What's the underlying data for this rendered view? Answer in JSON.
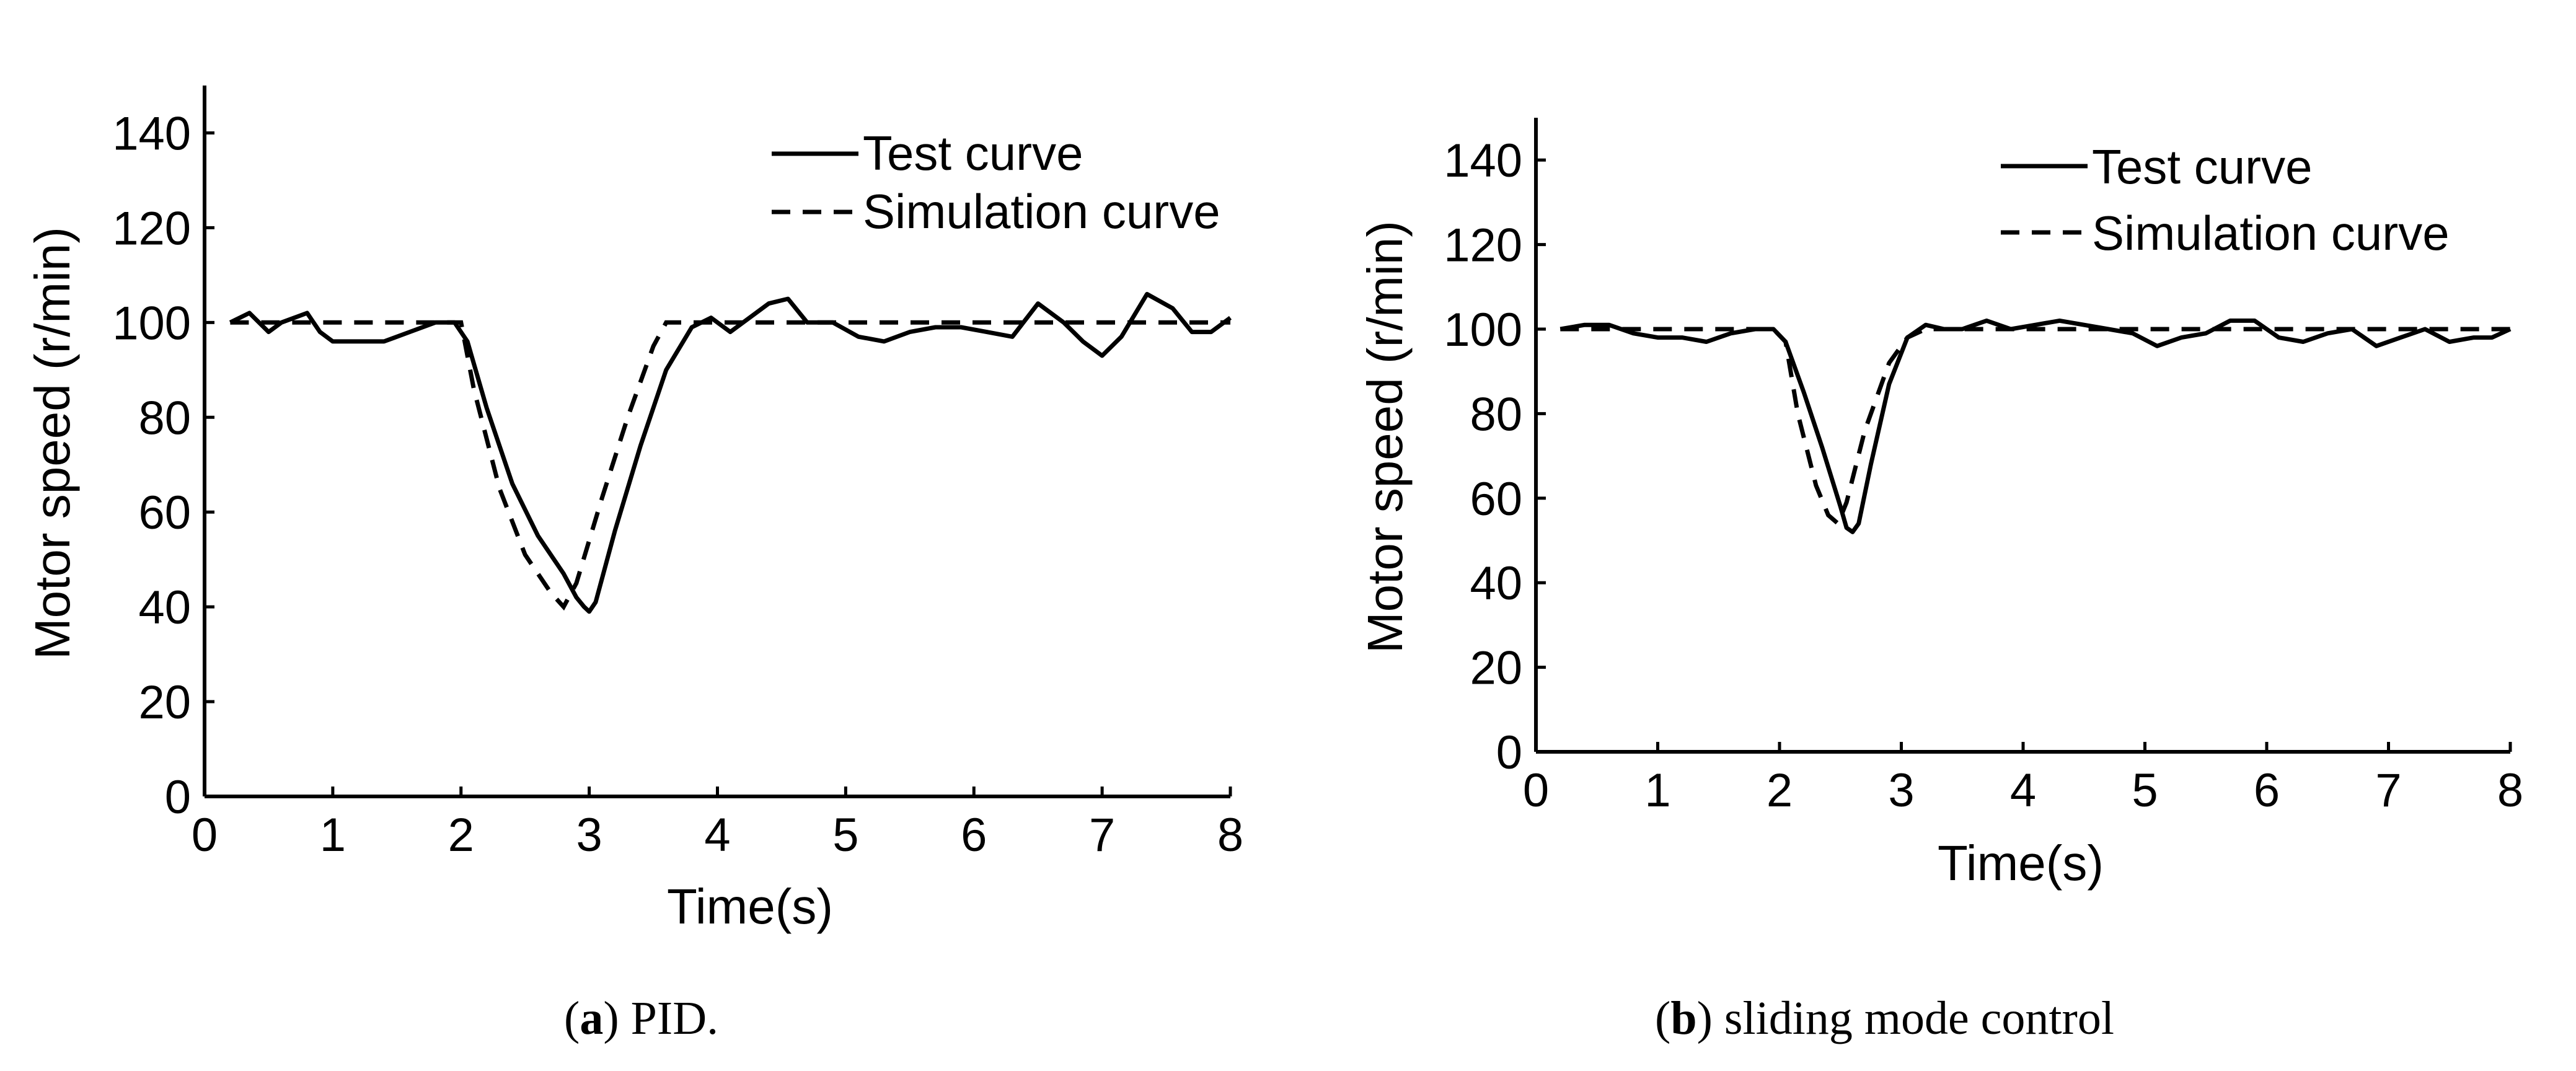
{
  "chart_data": [
    {
      "type": "line",
      "id": "a",
      "caption_letter": "a",
      "caption_text": "PID.",
      "xlabel": "Time(s)",
      "ylabel": "Motor speed (r/min)",
      "xlim": [
        0,
        8
      ],
      "ylim": [
        0,
        150
      ],
      "xticks": [
        0,
        1,
        2,
        3,
        4,
        5,
        6,
        7,
        8
      ],
      "yticks": [
        0,
        20,
        40,
        60,
        80,
        100,
        120,
        140
      ],
      "legend": {
        "position": "top-right"
      },
      "series": [
        {
          "name": "Test curve",
          "style": "solid",
          "x": [
            0.2,
            0.35,
            0.5,
            0.6,
            0.7,
            0.8,
            0.9,
            1.0,
            1.2,
            1.4,
            1.6,
            1.8,
            1.95,
            2.05,
            2.2,
            2.4,
            2.6,
            2.8,
            2.9,
            2.96,
            3.0,
            3.05,
            3.2,
            3.4,
            3.6,
            3.8,
            3.95,
            4.1,
            4.25,
            4.4,
            4.55,
            4.7,
            4.9,
            5.1,
            5.3,
            5.5,
            5.7,
            5.9,
            6.1,
            6.3,
            6.5,
            6.7,
            6.85,
            7.0,
            7.15,
            7.35,
            7.55,
            7.7,
            7.85,
            8.0
          ],
          "y": [
            100,
            102,
            98,
            100,
            101,
            102,
            98,
            96,
            96,
            96,
            98,
            100,
            100,
            96,
            82,
            66,
            55,
            47,
            42,
            40,
            39,
            41,
            56,
            74,
            90,
            99,
            101,
            98,
            101,
            104,
            105,
            100,
            100,
            97,
            96,
            98,
            99,
            99,
            98,
            97,
            104,
            100,
            96,
            93,
            97,
            106,
            103,
            98,
            98,
            101
          ]
        },
        {
          "name": "Simulation curve",
          "style": "dashed",
          "x": [
            0.2,
            1.0,
            1.9,
            2.0,
            2.1,
            2.3,
            2.5,
            2.7,
            2.8,
            2.9,
            3.1,
            3.3,
            3.5,
            3.6,
            3.65,
            4.0,
            5.0,
            6.0,
            7.0,
            8.0
          ],
          "y": [
            100,
            100,
            100,
            100,
            86,
            65,
            51,
            43,
            40,
            45,
            63,
            80,
            95,
            100,
            100,
            100,
            100,
            100,
            100,
            100
          ]
        }
      ]
    },
    {
      "type": "line",
      "id": "b",
      "caption_letter": "b",
      "caption_text": "sliding mode control",
      "xlabel": "Time(s)",
      "ylabel": "Motor speed (r/min)",
      "xlim": [
        0,
        8
      ],
      "ylim": [
        0,
        150
      ],
      "xticks": [
        0,
        1,
        2,
        3,
        4,
        5,
        6,
        7,
        8
      ],
      "yticks": [
        0,
        20,
        40,
        60,
        80,
        100,
        120,
        140
      ],
      "legend": {
        "position": "top-right"
      },
      "series": [
        {
          "name": "Test curve",
          "style": "solid",
          "x": [
            0.2,
            0.4,
            0.6,
            0.8,
            1.0,
            1.2,
            1.4,
            1.6,
            1.8,
            1.95,
            2.05,
            2.2,
            2.35,
            2.5,
            2.55,
            2.6,
            2.65,
            2.75,
            2.9,
            3.05,
            3.2,
            3.35,
            3.5,
            3.7,
            3.9,
            4.1,
            4.3,
            4.5,
            4.7,
            4.9,
            5.1,
            5.3,
            5.5,
            5.7,
            5.9,
            6.1,
            6.3,
            6.5,
            6.7,
            6.9,
            7.1,
            7.3,
            7.5,
            7.7,
            7.85,
            8.0
          ],
          "y": [
            100,
            101,
            101,
            99,
            98,
            98,
            97,
            99,
            100,
            100,
            97,
            85,
            72,
            58,
            53,
            52,
            54,
            68,
            87,
            98,
            101,
            100,
            100,
            102,
            100,
            101,
            102,
            101,
            100,
            99,
            96,
            98,
            99,
            102,
            102,
            98,
            97,
            99,
            100,
            96,
            98,
            100,
            97,
            98,
            98,
            100
          ]
        },
        {
          "name": "Simulation curve",
          "style": "dashed",
          "x": [
            0.2,
            1.0,
            1.95,
            2.05,
            2.15,
            2.3,
            2.4,
            2.48,
            2.55,
            2.7,
            2.9,
            3.05,
            3.2,
            4.0,
            5.0,
            6.0,
            7.0,
            8.0
          ],
          "y": [
            100,
            100,
            100,
            97,
            80,
            63,
            56,
            54,
            59,
            76,
            92,
            98,
            100,
            100,
            100,
            100,
            100,
            100
          ]
        }
      ]
    }
  ]
}
